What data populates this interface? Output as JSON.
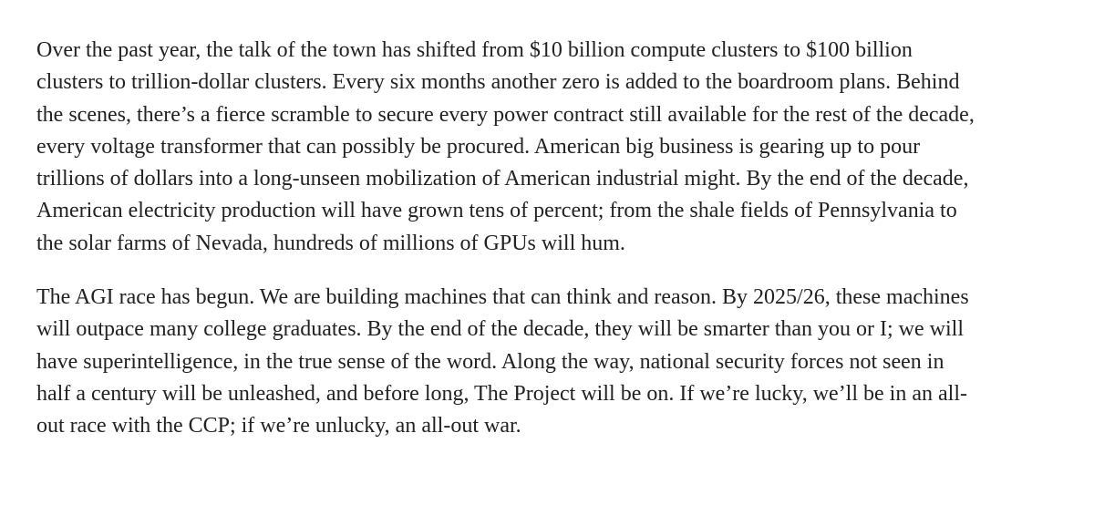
{
  "article": {
    "paragraphs": [
      {
        "lines": [
          "Over the past year, the talk of the town has shifted from $10 billion compute clusters to $100 billion",
          "clusters to trillion-dollar clusters. Every six months another zero is added to the boardroom plans. Behind",
          "the scenes, there’s a fierce scramble to secure every power contract still available for the rest of the decade,",
          "every voltage transformer that can possibly be procured. American big business is gearing up to pour",
          "trillions of dollars into a long-unseen mobilization of American industrial might. By the end of the decade,",
          "American electricity production will have grown tens of percent; from the shale fields of Pennsylvania to",
          "the solar farms of Nevada, hundreds of millions of GPUs will hum."
        ]
      },
      {
        "lines": [
          "The AGI race has begun. We are building machines that can think and reason. By 2025/26, these machines",
          "will outpace many college graduates. By the end of the decade, they will be smarter than you or I; we will",
          "have superintelligence, in the true sense of the word. Along the way, national security forces not seen in",
          "half a century will be unleashed, and before long, The Project will be on. If we’re lucky, we’ll be in an all-",
          "out race with the CCP; if we’re unlucky, an all-out war."
        ]
      }
    ]
  }
}
